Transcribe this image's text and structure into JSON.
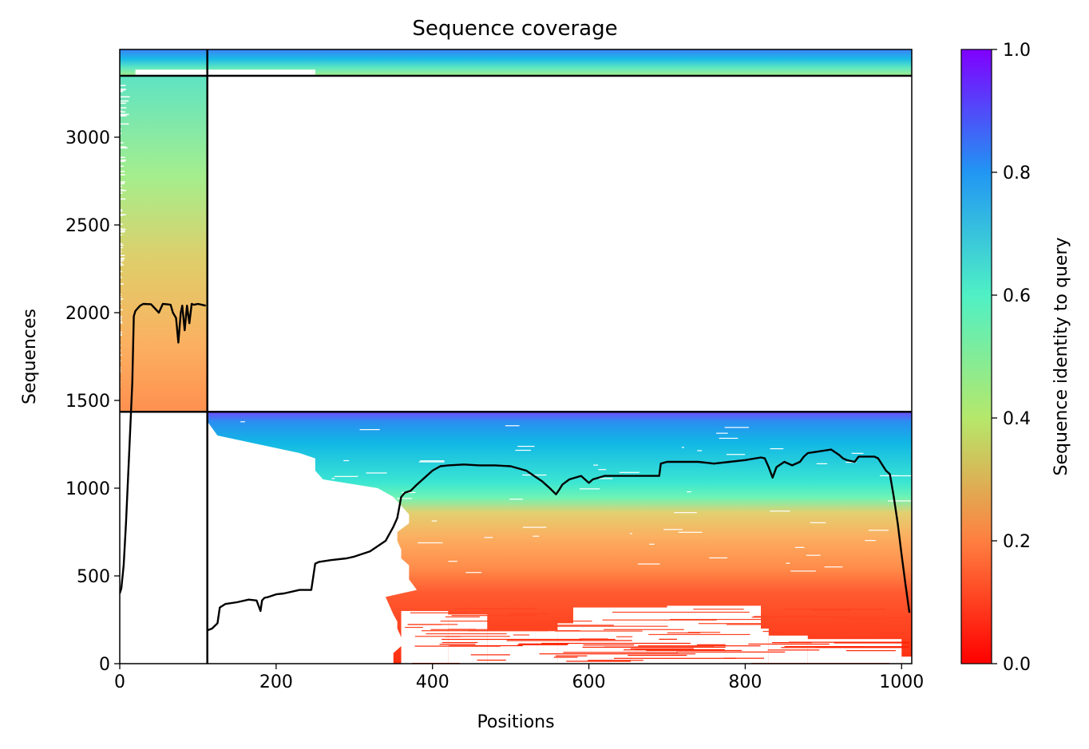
{
  "chart_data": {
    "type": "heatmap",
    "title": "Sequence coverage",
    "xlabel": "Positions",
    "ylabel": "Sequences",
    "colorbar_label": "Sequence identity to query",
    "xlim": [
      0,
      1013
    ],
    "ylim": [
      0,
      3500
    ],
    "xticks": [
      "0",
      "200",
      "400",
      "600",
      "800",
      "1000"
    ],
    "yticks": [
      "0",
      "500",
      "1000",
      "1500",
      "2000",
      "2500",
      "3000"
    ],
    "colorbar_ticks": [
      "0.0",
      "0.2",
      "0.4",
      "0.6",
      "0.8",
      "1.0"
    ],
    "colormap": "rainbow_r",
    "block_boundaries": {
      "vertical_x": 112,
      "horizontal_y": [
        1435,
        3350
      ]
    },
    "segments": [
      {
        "name": "segment-1",
        "x_range": [
          0,
          112
        ],
        "y_range": [
          1435,
          3350
        ],
        "identity_range": [
          0.2,
          0.55
        ]
      },
      {
        "name": "segment-2",
        "x_range": [
          112,
          1013
        ],
        "y_range": [
          0,
          1435
        ],
        "identity_range": [
          0.05,
          0.9
        ]
      },
      {
        "name": "segment-top",
        "x_range": [
          0,
          1013
        ],
        "y_range": [
          3350,
          3500
        ],
        "identity_range": [
          0.4,
          0.85
        ]
      }
    ],
    "coverage_line_1": {
      "x": [
        0,
        2,
        5,
        8,
        12,
        16,
        18,
        20,
        22,
        26,
        30,
        40,
        50,
        55,
        60,
        65,
        68,
        72,
        75,
        78,
        80,
        83,
        86,
        89,
        92,
        95,
        100,
        105,
        110
      ],
      "y": [
        400,
        430,
        560,
        800,
        1200,
        1600,
        1980,
        2010,
        2020,
        2040,
        2050,
        2048,
        2000,
        2050,
        2048,
        2045,
        2000,
        1970,
        1830,
        2000,
        2040,
        1900,
        2040,
        1940,
        2050,
        2045,
        2050,
        2045,
        2040
      ]
    },
    "coverage_line_2": {
      "x": [
        112,
        118,
        125,
        128,
        135,
        150,
        165,
        175,
        180,
        182,
        185,
        190,
        200,
        210,
        230,
        245,
        250,
        255,
        270,
        290,
        300,
        320,
        340,
        350,
        355,
        360,
        365,
        372,
        380,
        390,
        400,
        410,
        420,
        440,
        460,
        480,
        500,
        520,
        540,
        550,
        558,
        562,
        566,
        575,
        590,
        600,
        605,
        620,
        660,
        690,
        692,
        700,
        740,
        760,
        780,
        800,
        820,
        825,
        830,
        835,
        840,
        850,
        860,
        870,
        875,
        880,
        895,
        910,
        920,
        925,
        930,
        940,
        945,
        955,
        965,
        970,
        980,
        985,
        990,
        995,
        1000,
        1005,
        1010
      ],
      "y": [
        190,
        200,
        230,
        320,
        340,
        350,
        365,
        360,
        300,
        360,
        375,
        380,
        395,
        400,
        420,
        420,
        570,
        580,
        590,
        600,
        610,
        640,
        700,
        780,
        830,
        950,
        975,
        985,
        1020,
        1060,
        1100,
        1125,
        1130,
        1135,
        1130,
        1130,
        1125,
        1100,
        1040,
        1000,
        965,
        990,
        1020,
        1050,
        1070,
        1030,
        1050,
        1070,
        1070,
        1070,
        1140,
        1150,
        1150,
        1140,
        1150,
        1160,
        1175,
        1170,
        1120,
        1060,
        1120,
        1150,
        1130,
        1150,
        1180,
        1200,
        1210,
        1220,
        1190,
        1170,
        1160,
        1150,
        1180,
        1180,
        1180,
        1170,
        1100,
        1080,
        950,
        800,
        620,
        450,
        290
      ]
    }
  }
}
